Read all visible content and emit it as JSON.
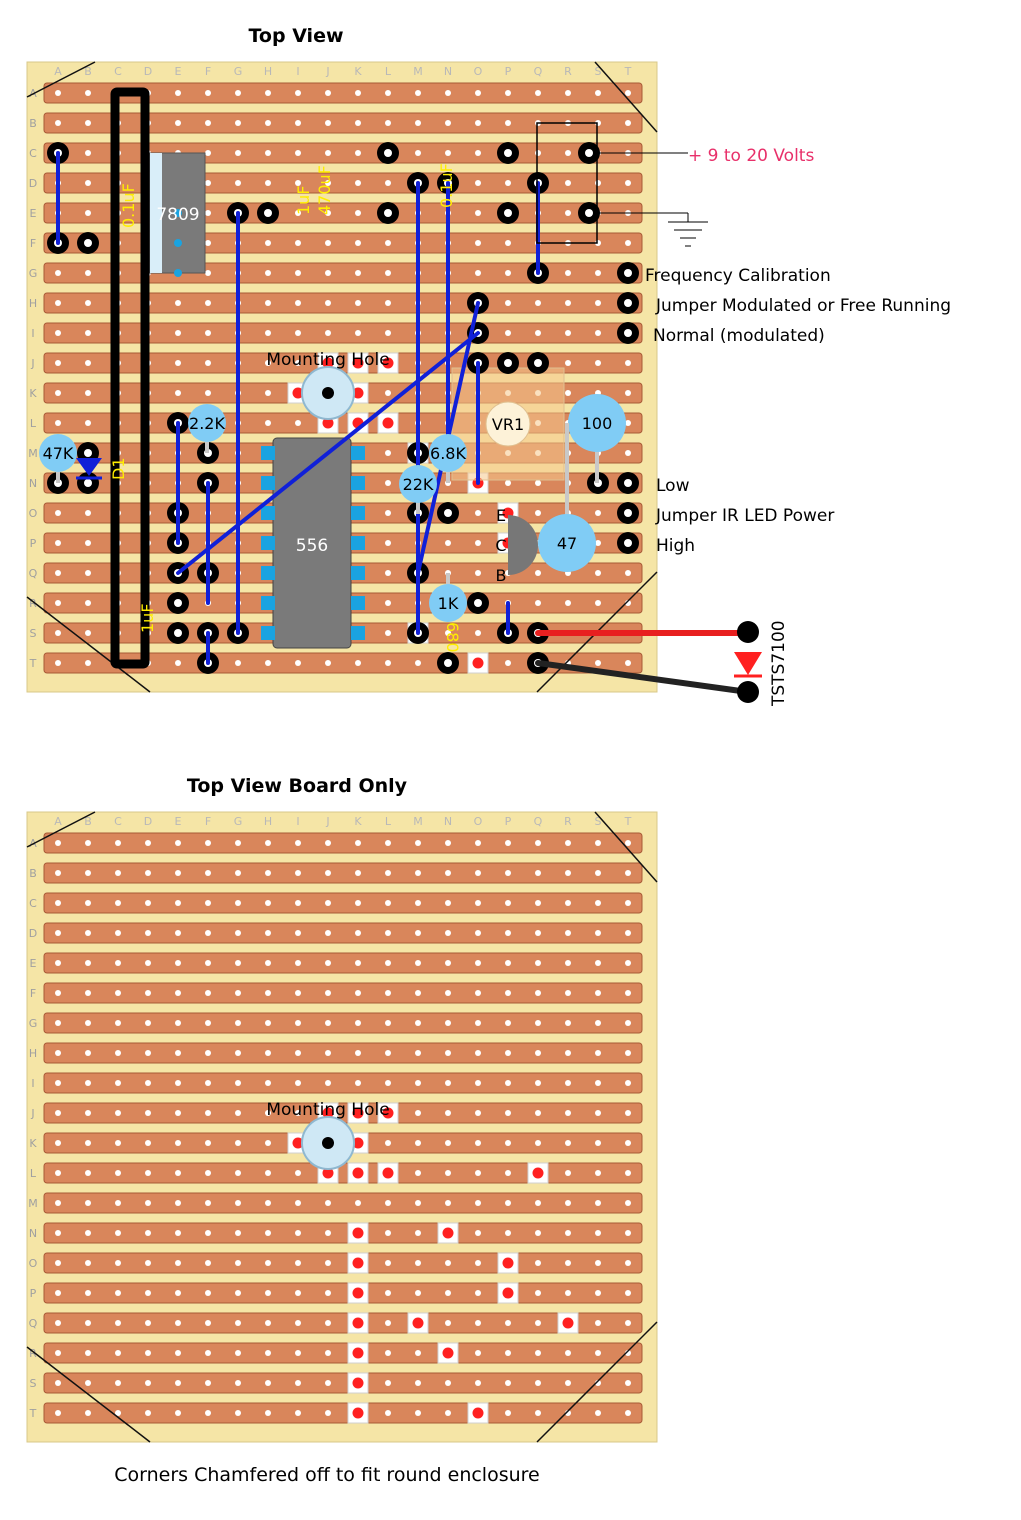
{
  "titles": {
    "top_view": "Top View",
    "board_only": "Top View Board Only",
    "footer": "Corners Chamfered off to fit round enclosure"
  },
  "grid": {
    "columns": [
      "A",
      "B",
      "C",
      "D",
      "E",
      "F",
      "G",
      "H",
      "I",
      "J",
      "K",
      "L",
      "M",
      "N",
      "O",
      "P",
      "Q",
      "R",
      "S",
      "T"
    ],
    "rows": [
      "A",
      "B",
      "C",
      "D",
      "E",
      "F",
      "G",
      "H",
      "I",
      "J",
      "K",
      "L",
      "M",
      "N",
      "O",
      "P",
      "Q",
      "R",
      "S",
      "T"
    ]
  },
  "labels": {
    "power": "+ 9 to 20 Volts",
    "freq_cal": "Frequency Calibration",
    "jumper_mod": "Jumper Modulated or Free Running",
    "normal": "Normal (modulated)",
    "low": "Low",
    "jumper_ir": "Jumper IR LED Power",
    "high": "High",
    "mounting_hole": "Mounting Hole",
    "led_part": "TSTS7100"
  },
  "components": {
    "reg": "7809",
    "ic": "556",
    "c_01a": "0.1uF",
    "c_1uf_a": "1uF",
    "c_470": "470uF",
    "c_01b": "0.1uF",
    "c_1uf_b": "1uF",
    "r_22k_small": "2.2K",
    "r_47k": "47K",
    "d1": "D1",
    "vr1": "VR1",
    "r_100": "100",
    "r_68k": "6.8K",
    "r_22k": "22K",
    "r_47": "47",
    "r_1k": "1K",
    "c_680": "680",
    "pin_e": "E",
    "pin_c": "C",
    "pin_b": "B"
  },
  "cuts": {
    "top": [
      [
        9,
        9
      ],
      [
        10,
        9
      ],
      [
        11,
        9
      ],
      [
        8,
        10
      ],
      [
        10,
        10
      ],
      [
        9,
        11
      ],
      [
        10,
        11
      ],
      [
        11,
        11
      ],
      [
        12,
        12
      ],
      [
        14,
        13
      ],
      [
        15,
        14
      ],
      [
        15,
        15
      ],
      [
        13,
        17
      ],
      [
        12,
        18
      ],
      [
        14,
        19
      ]
    ],
    "bottom": [
      [
        9,
        9
      ],
      [
        10,
        9
      ],
      [
        11,
        9
      ],
      [
        8,
        10
      ],
      [
        10,
        10
      ],
      [
        9,
        11
      ],
      [
        10,
        11
      ],
      [
        11,
        11
      ],
      [
        16,
        11
      ],
      [
        10,
        13
      ],
      [
        13,
        13
      ],
      [
        10,
        14
      ],
      [
        15,
        14
      ],
      [
        10,
        15
      ],
      [
        15,
        15
      ],
      [
        10,
        16
      ],
      [
        12,
        16
      ],
      [
        17,
        16
      ],
      [
        10,
        17
      ],
      [
        13,
        17
      ],
      [
        10,
        18
      ],
      [
        10,
        19
      ],
      [
        14,
        19
      ]
    ]
  },
  "colors": {
    "board": "#f5e5a6",
    "strip": "#d9865b",
    "strip_edge": "#a85a36",
    "wire": "#1020d8",
    "cut": "#ff2020",
    "part": "#80ccf5",
    "ic": "#7a7a7a",
    "power_text": "#e8306a"
  }
}
